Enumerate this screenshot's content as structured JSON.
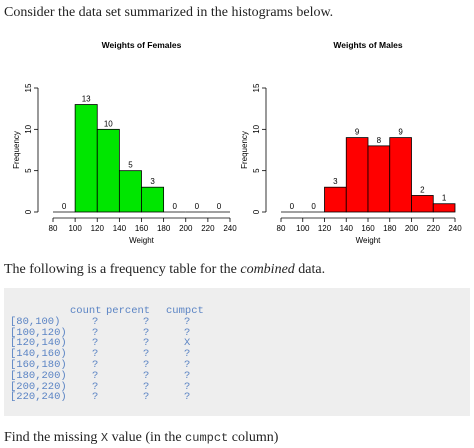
{
  "intro_text": "Consider the data set summarized in the histograms below.",
  "chart_data": [
    {
      "type": "bar",
      "title": "Weights of Females",
      "xlabel": "Weight",
      "ylabel": "Frequency",
      "bins": [
        "80-100",
        "100-120",
        "120-140",
        "140-160",
        "160-180",
        "180-200",
        "200-220",
        "220-240"
      ],
      "values": [
        0,
        13,
        10,
        5,
        3,
        0,
        0,
        0
      ],
      "xlim": [
        80,
        240
      ],
      "ylim": [
        0,
        15
      ],
      "xticks": [
        80,
        100,
        120,
        140,
        160,
        180,
        200,
        220,
        240
      ],
      "yticks": [
        0,
        5,
        10,
        15
      ],
      "bar_color": "#00e600"
    },
    {
      "type": "bar",
      "title": "Weights of Males",
      "xlabel": "Weight",
      "ylabel": "Frequency",
      "bins": [
        "80-100",
        "100-120",
        "120-140",
        "140-160",
        "160-180",
        "180-200",
        "200-220",
        "220-240"
      ],
      "values": [
        0,
        0,
        3,
        9,
        8,
        9,
        2,
        1
      ],
      "xlim": [
        80,
        240
      ],
      "ylim": [
        0,
        15
      ],
      "xticks": [
        80,
        100,
        120,
        140,
        160,
        180,
        200,
        220,
        240
      ],
      "yticks": [
        0,
        5,
        10,
        15
      ],
      "bar_color": "#ff0000"
    }
  ],
  "table_intro_prefix": "The following is a frequency table for the ",
  "table_intro_em": "combined",
  "table_intro_suffix": " data.",
  "table": {
    "headers": [
      "count",
      "percent",
      "cumpct"
    ],
    "rows": [
      {
        "bin": "[80,100)",
        "count": "?",
        "percent": "?",
        "cumpct": "?"
      },
      {
        "bin": "[100,120)",
        "count": "?",
        "percent": "?",
        "cumpct": "?"
      },
      {
        "bin": "[120,140)",
        "count": "?",
        "percent": "?",
        "cumpct": "X"
      },
      {
        "bin": "[140,160)",
        "count": "?",
        "percent": "?",
        "cumpct": "?"
      },
      {
        "bin": "[160,180)",
        "count": "?",
        "percent": "?",
        "cumpct": "?"
      },
      {
        "bin": "[180,200)",
        "count": "?",
        "percent": "?",
        "cumpct": "?"
      },
      {
        "bin": "[200,220)",
        "count": "?",
        "percent": "?",
        "cumpct": "?"
      },
      {
        "bin": "[220,240)",
        "count": "?",
        "percent": "?",
        "cumpct": "?"
      }
    ]
  },
  "question_prefix": "Find the missing ",
  "question_var": "X",
  "question_mid": " value (in the ",
  "question_col": "cumpct",
  "question_suffix": " column)"
}
